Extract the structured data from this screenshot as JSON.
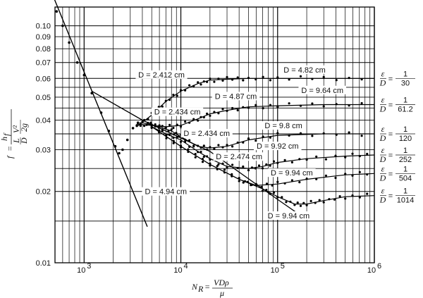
{
  "chart_data": {
    "type": "scatter",
    "x_scale": "log",
    "y_scale": "log",
    "xlim": [
      500,
      1000000
    ],
    "ylim": [
      0.01,
      0.12
    ],
    "grid": true,
    "xlabel": {
      "lhs": "N",
      "sub": "R",
      "eq": "=",
      "num": "VDρ",
      "den": "μ"
    },
    "ylabel": {
      "lhs": "f",
      "eq": "=",
      "num_h": "h",
      "num_sub": "f",
      "mid_num": "L",
      "mid_den": "D",
      "v": "V²",
      "den": "2g"
    },
    "x_ticks": [
      {
        "value": 1000,
        "base": "10",
        "exp": "3"
      },
      {
        "value": 10000,
        "base": "10",
        "exp": "4"
      },
      {
        "value": 100000,
        "base": "10",
        "exp": "5"
      },
      {
        "value": 1000000,
        "base": "10",
        "exp": "6"
      }
    ],
    "y_ticks": [
      {
        "value": 0.1,
        "label": "0.10"
      },
      {
        "value": 0.09,
        "label": "0.09"
      },
      {
        "value": 0.08,
        "label": "0.08"
      },
      {
        "value": 0.07,
        "label": "0.07"
      },
      {
        "value": 0.06,
        "label": "0.06"
      },
      {
        "value": 0.05,
        "label": "0.05"
      },
      {
        "value": 0.04,
        "label": "0.04"
      },
      {
        "value": 0.03,
        "label": "0.03"
      },
      {
        "value": 0.02,
        "label": "0.02"
      },
      {
        "value": 0.01,
        "label": "0.01"
      }
    ],
    "laminar_line": {
      "x": [
        480,
        4500
      ],
      "y": [
        0.133,
        0.0142
      ]
    },
    "smooth_pipe_line": {
      "x": [
        1200,
        4000,
        20000,
        100000,
        200000
      ],
      "y": [
        0.053,
        0.04,
        0.0295,
        0.0185,
        0.0152
      ]
    },
    "series": [
      {
        "roughness": {
          "lhs_num": "ε",
          "lhs_den": "D",
          "num": "1",
          "den": "30"
        },
        "x": [
          3500,
          5000,
          7000,
          10000,
          15000,
          20000,
          30000,
          50000,
          100000,
          300000,
          1000000
        ],
        "y": [
          0.0375,
          0.042,
          0.048,
          0.053,
          0.057,
          0.059,
          0.0595,
          0.06,
          0.06,
          0.06,
          0.06
        ]
      },
      {
        "roughness": {
          "lhs_num": "ε",
          "lhs_den": "D",
          "num": "1",
          "den": "61.2"
        },
        "x": [
          3500,
          5000,
          7000,
          10000,
          15000,
          20000,
          30000,
          50000,
          100000,
          300000,
          1000000
        ],
        "y": [
          0.0385,
          0.038,
          0.0375,
          0.038,
          0.0405,
          0.0425,
          0.044,
          0.0455,
          0.046,
          0.0465,
          0.0465
        ]
      },
      {
        "roughness": {
          "lhs_num": "ε",
          "lhs_den": "D",
          "num": "1",
          "den": "120"
        },
        "x": [
          4000,
          6000,
          8000,
          10000,
          15000,
          20000,
          30000,
          50000,
          100000,
          300000,
          1000000
        ],
        "y": [
          0.039,
          0.0375,
          0.036,
          0.034,
          0.031,
          0.0305,
          0.031,
          0.033,
          0.0345,
          0.035,
          0.035
        ]
      },
      {
        "roughness": {
          "lhs_num": "ε",
          "lhs_den": "D",
          "num": "1",
          "den": "252"
        },
        "x": [
          5000,
          7000,
          10000,
          15000,
          20000,
          30000,
          50000,
          70000,
          100000,
          200000,
          500000,
          1000000
        ],
        "y": [
          0.0375,
          0.035,
          0.033,
          0.0295,
          0.0275,
          0.0255,
          0.025,
          0.0255,
          0.0265,
          0.0275,
          0.0282,
          0.0285
        ]
      },
      {
        "roughness": {
          "lhs_num": "ε",
          "lhs_den": "D",
          "num": "1",
          "den": "504"
        },
        "x": [
          5000,
          10000,
          20000,
          40000,
          60000,
          100000,
          200000,
          500000,
          1000000
        ],
        "y": [
          0.0375,
          0.031,
          0.026,
          0.0225,
          0.0212,
          0.0215,
          0.0225,
          0.0235,
          0.0238
        ]
      },
      {
        "roughness": {
          "lhs_num": "ε",
          "lhs_den": "D",
          "num": "1",
          "den": "1014"
        },
        "x": [
          5000,
          10000,
          20000,
          40000,
          70000,
          100000,
          150000,
          200000,
          300000,
          500000,
          1000000
        ],
        "y": [
          0.0375,
          0.031,
          0.026,
          0.0225,
          0.0205,
          0.019,
          0.0177,
          0.0177,
          0.0183,
          0.019,
          0.0192
        ]
      }
    ],
    "transition_points": {
      "x": [
        520,
        600,
        700,
        850,
        1000,
        1200,
        1500,
        1800,
        2100,
        2300,
        2500,
        2800,
        3200,
        3600
      ],
      "y": [
        0.115,
        0.1,
        0.085,
        0.07,
        0.062,
        0.052,
        0.043,
        0.036,
        0.031,
        0.029,
        0.03,
        0.033,
        0.037,
        0.039
      ]
    },
    "annotations": [
      {
        "text": "D = 2.412 cm",
        "x": 6300,
        "y": 0.061
      },
      {
        "text": "D = 4.82 cm",
        "x": 190000,
        "y": 0.064
      },
      {
        "text": "D = 4.87 cm",
        "x": 37000,
        "y": 0.0495
      },
      {
        "text": "D = 9.64 cm",
        "x": 290000,
        "y": 0.0525
      },
      {
        "text": "D = 2.434 cm",
        "x": 9200,
        "y": 0.0425
      },
      {
        "text": "D = 2.434 cm",
        "x": 18500,
        "y": 0.0345
      },
      {
        "text": "D = 9.8 cm",
        "x": 115000,
        "y": 0.0372
      },
      {
        "text": "D = 9.92 cm",
        "x": 100000,
        "y": 0.0305
      },
      {
        "text": "D = 2.474 cm",
        "x": 40000,
        "y": 0.0275
      },
      {
        "text": "D = 9.94 cm",
        "x": 140000,
        "y": 0.0235
      },
      {
        "text": "D = 4.94 cm",
        "x": 7000,
        "y": 0.0196
      },
      {
        "text": "D = 9.94 cm",
        "x": 130000,
        "y": 0.0155
      }
    ]
  }
}
